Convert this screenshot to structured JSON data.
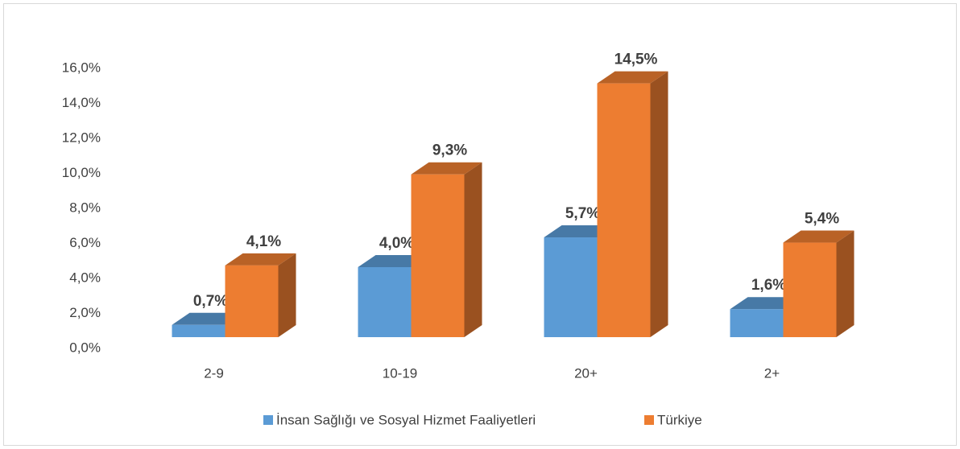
{
  "chart_data": {
    "type": "bar3d",
    "categories": [
      "2-9",
      "10-19",
      "20+",
      "2+"
    ],
    "series": [
      {
        "name": "İnsan Sağlığı ve Sosyal Hizmet Faaliyetleri",
        "color": "#5b9bd5",
        "values": [
          0.7,
          4.0,
          5.7,
          1.6
        ],
        "value_labels": [
          "0,7%",
          "4,0%",
          "5,7%",
          "1,6%"
        ]
      },
      {
        "name": "Türkiye",
        "color": "#ed7d31",
        "values": [
          4.1,
          9.3,
          14.5,
          5.4
        ],
        "value_labels": [
          "4,1%",
          "9,3%",
          "14,5%",
          "5,4%"
        ]
      }
    ],
    "ylim": [
      0,
      16
    ],
    "yticks": [
      {
        "value": 0,
        "label": "0,0%"
      },
      {
        "value": 2,
        "label": "2,0%"
      },
      {
        "value": 4,
        "label": "4,0%"
      },
      {
        "value": 6,
        "label": "6,0%"
      },
      {
        "value": 8,
        "label": "8,0%"
      },
      {
        "value": 10,
        "label": "10,0%"
      },
      {
        "value": 12,
        "label": "12,0%"
      },
      {
        "value": 14,
        "label": "14,0%"
      },
      {
        "value": 16,
        "label": "16,0%"
      }
    ],
    "legend": "bottom"
  }
}
